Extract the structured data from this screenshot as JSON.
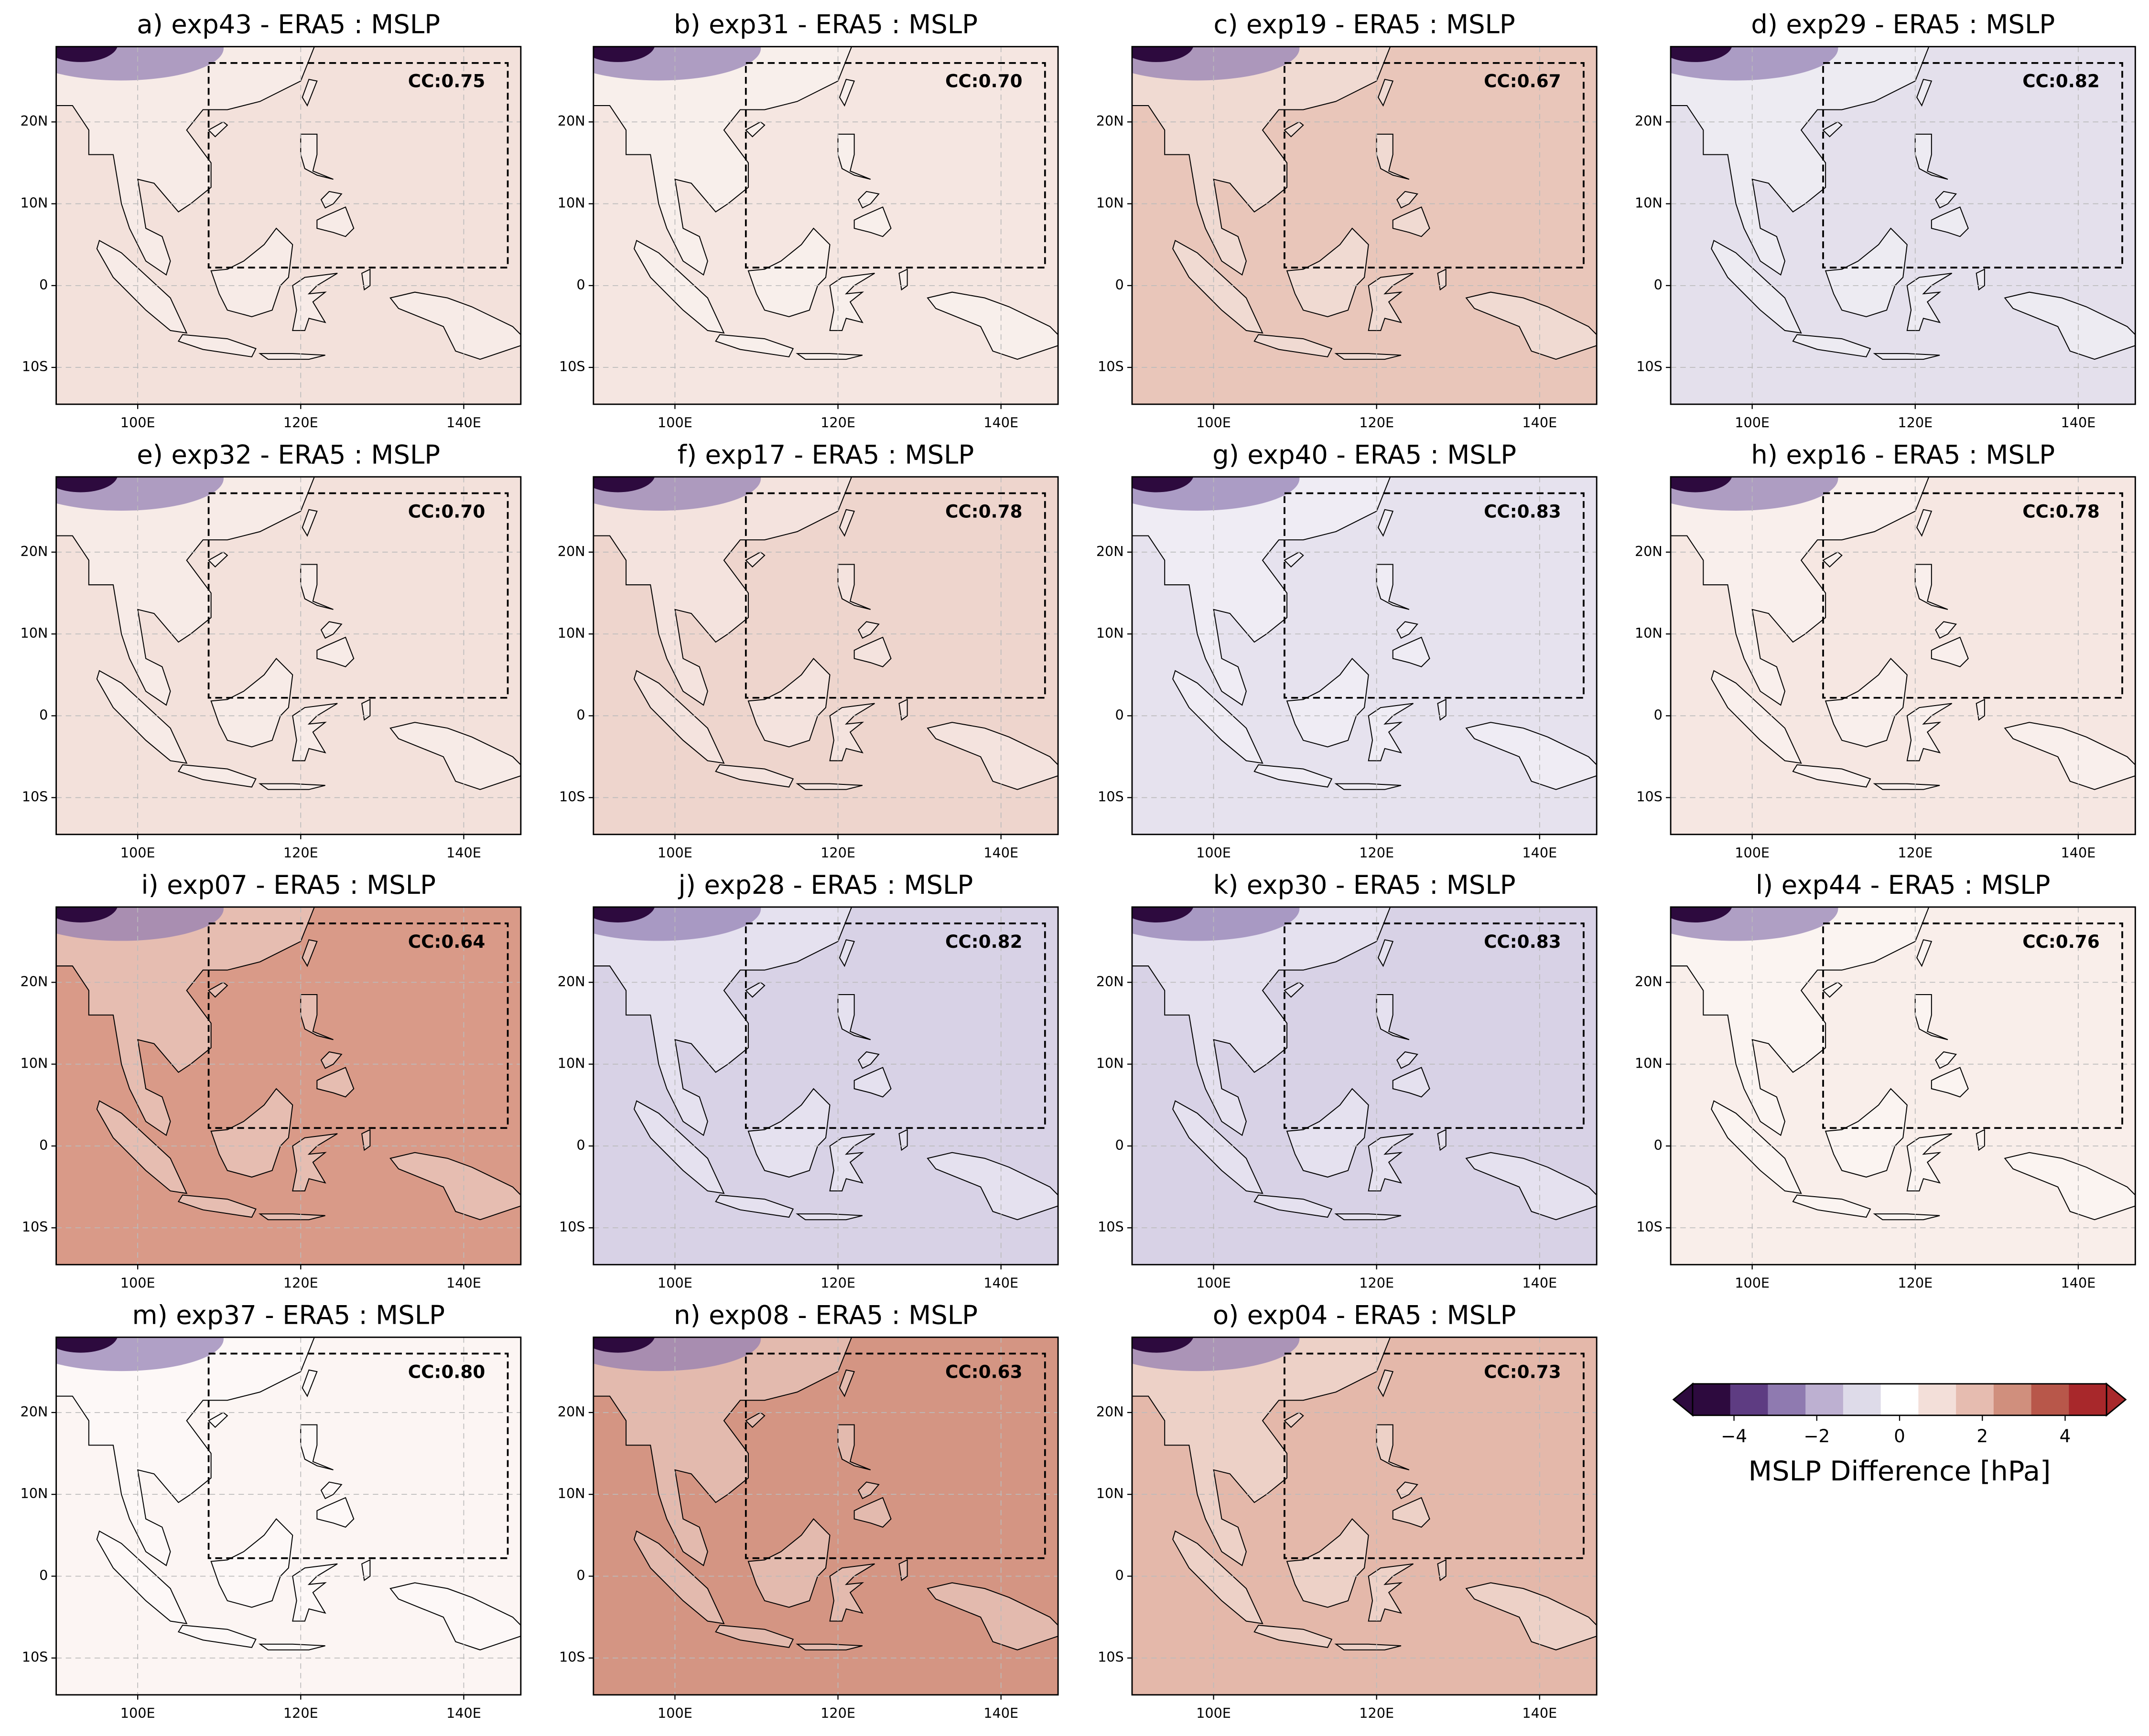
{
  "chart_data": [
    {
      "type": "map",
      "title": "a) exp43 - ERA5 : MSLP",
      "annotation": "CC:0.75",
      "color": "#f3e1db",
      "xlim": [
        90,
        147
      ],
      "ylim": [
        -14.5,
        29.2
      ],
      "xticks": [
        {
          "value": 100,
          "label": "100E"
        },
        {
          "value": 120,
          "label": "120E"
        },
        {
          "value": 140,
          "label": "140E"
        }
      ],
      "yticks": [
        {
          "value": -10,
          "label": "10S"
        },
        0,
        {
          "value": 10,
          "label": "10N"
        },
        {
          "value": 20,
          "label": "20N"
        }
      ]
    },
    {
      "type": "map",
      "title": "b) exp31 - ERA5 : MSLP",
      "annotation": "CC:0.70",
      "color": "#f5e6e1",
      "xlim": [
        90,
        147
      ],
      "ylim": [
        -14.5,
        29.2
      ],
      "xticks": [
        {
          "value": 100,
          "label": "100E"
        },
        {
          "value": 120,
          "label": "120E"
        },
        {
          "value": 140,
          "label": "140E"
        }
      ],
      "yticks": [
        {
          "value": -10,
          "label": "10S"
        },
        0,
        {
          "value": 10,
          "label": "10N"
        },
        {
          "value": 20,
          "label": "20N"
        }
      ]
    },
    {
      "type": "map",
      "title": "c) exp19 - ERA5 : MSLP",
      "annotation": "CC:0.67",
      "color": "#e9c6ba",
      "xlim": [
        90,
        147
      ],
      "ylim": [
        -14.5,
        29.2
      ],
      "xticks": [
        {
          "value": 100,
          "label": "100E"
        },
        {
          "value": 120,
          "label": "120E"
        },
        {
          "value": 140,
          "label": "140E"
        }
      ],
      "yticks": [
        {
          "value": -10,
          "label": "10S"
        },
        0,
        {
          "value": 10,
          "label": "10N"
        },
        {
          "value": 20,
          "label": "20N"
        }
      ]
    },
    {
      "type": "map",
      "title": "d) exp29 - ERA5 : MSLP",
      "annotation": "CC:0.82",
      "color": "#e4e0ec",
      "xlim": [
        90,
        147
      ],
      "ylim": [
        -14.5,
        29.2
      ],
      "xticks": [
        {
          "value": 100,
          "label": "100E"
        },
        {
          "value": 120,
          "label": "120E"
        },
        {
          "value": 140,
          "label": "140E"
        }
      ],
      "yticks": [
        {
          "value": -10,
          "label": "10S"
        },
        0,
        {
          "value": 10,
          "label": "10N"
        },
        {
          "value": 20,
          "label": "20N"
        }
      ]
    },
    {
      "type": "map",
      "title": "e) exp32 - ERA5 : MSLP",
      "annotation": "CC:0.70",
      "color": "#f3e1db",
      "xlim": [
        90,
        147
      ],
      "ylim": [
        -14.5,
        29.2
      ],
      "xticks": [
        {
          "value": 100,
          "label": "100E"
        },
        {
          "value": 120,
          "label": "120E"
        },
        {
          "value": 140,
          "label": "140E"
        }
      ],
      "yticks": [
        {
          "value": -10,
          "label": "10S"
        },
        0,
        {
          "value": 10,
          "label": "10N"
        },
        {
          "value": 20,
          "label": "20N"
        }
      ]
    },
    {
      "type": "map",
      "title": "f) exp17 - ERA5 : MSLP",
      "annotation": "CC:0.78",
      "color": "#eed5cd",
      "xlim": [
        90,
        147
      ],
      "ylim": [
        -14.5,
        29.2
      ],
      "xticks": [
        {
          "value": 100,
          "label": "100E"
        },
        {
          "value": 120,
          "label": "120E"
        },
        {
          "value": 140,
          "label": "140E"
        }
      ],
      "yticks": [
        {
          "value": -10,
          "label": "10S"
        },
        0,
        {
          "value": 10,
          "label": "10N"
        },
        {
          "value": 20,
          "label": "20N"
        }
      ]
    },
    {
      "type": "map",
      "title": "g) exp40 - ERA5 : MSLP",
      "annotation": "CC:0.83",
      "color": "#e6e2ee",
      "xlim": [
        90,
        147
      ],
      "ylim": [
        -14.5,
        29.2
      ],
      "xticks": [
        {
          "value": 100,
          "label": "100E"
        },
        {
          "value": 120,
          "label": "120E"
        },
        {
          "value": 140,
          "label": "140E"
        }
      ],
      "yticks": [
        {
          "value": -10,
          "label": "10S"
        },
        0,
        {
          "value": 10,
          "label": "10N"
        },
        {
          "value": 20,
          "label": "20N"
        }
      ]
    },
    {
      "type": "map",
      "title": "h) exp16 - ERA5 : MSLP",
      "annotation": "CC:0.78",
      "color": "#f6e7e2",
      "xlim": [
        90,
        147
      ],
      "ylim": [
        -14.5,
        29.2
      ],
      "xticks": [
        {
          "value": 100,
          "label": "100E"
        },
        {
          "value": 120,
          "label": "120E"
        },
        {
          "value": 140,
          "label": "140E"
        }
      ],
      "yticks": [
        {
          "value": -10,
          "label": "10S"
        },
        0,
        {
          "value": 10,
          "label": "10N"
        },
        {
          "value": 20,
          "label": "20N"
        }
      ]
    },
    {
      "type": "map",
      "title": "i) exp07 - ERA5 : MSLP",
      "annotation": "CC:0.64",
      "color": "#d99a88",
      "xlim": [
        90,
        147
      ],
      "ylim": [
        -14.5,
        29.2
      ],
      "xticks": [
        {
          "value": 100,
          "label": "100E"
        },
        {
          "value": 120,
          "label": "120E"
        },
        {
          "value": 140,
          "label": "140E"
        }
      ],
      "yticks": [
        {
          "value": -10,
          "label": "10S"
        },
        0,
        {
          "value": 10,
          "label": "10N"
        },
        {
          "value": 20,
          "label": "20N"
        }
      ]
    },
    {
      "type": "map",
      "title": "j) exp28 - ERA5 : MSLP",
      "annotation": "CC:0.82",
      "color": "#d8d2e6",
      "xlim": [
        90,
        147
      ],
      "ylim": [
        -14.5,
        29.2
      ],
      "xticks": [
        {
          "value": 100,
          "label": "100E"
        },
        {
          "value": 120,
          "label": "120E"
        },
        {
          "value": 140,
          "label": "140E"
        }
      ],
      "yticks": [
        {
          "value": -10,
          "label": "10S"
        },
        0,
        {
          "value": 10,
          "label": "10N"
        },
        {
          "value": 20,
          "label": "20N"
        }
      ]
    },
    {
      "type": "map",
      "title": "k) exp30 - ERA5 : MSLP",
      "annotation": "CC:0.83",
      "color": "#d8d2e6",
      "xlim": [
        90,
        147
      ],
      "ylim": [
        -14.5,
        29.2
      ],
      "xticks": [
        {
          "value": 100,
          "label": "100E"
        },
        {
          "value": 120,
          "label": "120E"
        },
        {
          "value": 140,
          "label": "140E"
        }
      ],
      "yticks": [
        {
          "value": -10,
          "label": "10S"
        },
        0,
        {
          "value": 10,
          "label": "10N"
        },
        {
          "value": 20,
          "label": "20N"
        }
      ]
    },
    {
      "type": "map",
      "title": "l) exp44 - ERA5 : MSLP",
      "annotation": "CC:0.76",
      "color": "#f9eeea",
      "xlim": [
        90,
        147
      ],
      "ylim": [
        -14.5,
        29.2
      ],
      "xticks": [
        {
          "value": 100,
          "label": "100E"
        },
        {
          "value": 120,
          "label": "120E"
        },
        {
          "value": 140,
          "label": "140E"
        }
      ],
      "yticks": [
        {
          "value": -10,
          "label": "10S"
        },
        0,
        {
          "value": 10,
          "label": "10N"
        },
        {
          "value": 20,
          "label": "20N"
        }
      ]
    },
    {
      "type": "map",
      "title": "m) exp37 - ERA5 : MSLP",
      "annotation": "CC:0.80",
      "color": "#fcf5f3",
      "xlim": [
        90,
        147
      ],
      "ylim": [
        -14.5,
        29.2
      ],
      "xticks": [
        {
          "value": 100,
          "label": "100E"
        },
        {
          "value": 120,
          "label": "120E"
        },
        {
          "value": 140,
          "label": "140E"
        }
      ],
      "yticks": [
        {
          "value": -10,
          "label": "10S"
        },
        0,
        {
          "value": 10,
          "label": "10N"
        },
        {
          "value": 20,
          "label": "20N"
        }
      ]
    },
    {
      "type": "map",
      "title": "n) exp08 - ERA5 : MSLP",
      "annotation": "CC:0.63",
      "color": "#d49583",
      "xlim": [
        90,
        147
      ],
      "ylim": [
        -14.5,
        29.2
      ],
      "xticks": [
        {
          "value": 100,
          "label": "100E"
        },
        {
          "value": 120,
          "label": "120E"
        },
        {
          "value": 140,
          "label": "140E"
        }
      ],
      "yticks": [
        {
          "value": -10,
          "label": "10S"
        },
        0,
        {
          "value": 10,
          "label": "10N"
        },
        {
          "value": 20,
          "label": "20N"
        }
      ]
    },
    {
      "type": "map",
      "title": "o) exp04 - ERA5 : MSLP",
      "annotation": "CC:0.73",
      "color": "#e4b8aa",
      "xlim": [
        90,
        147
      ],
      "ylim": [
        -14.5,
        29.2
      ],
      "xticks": [
        {
          "value": 100,
          "label": "100E"
        },
        {
          "value": 120,
          "label": "120E"
        },
        {
          "value": 140,
          "label": "140E"
        }
      ],
      "yticks": [
        {
          "value": -10,
          "label": "10S"
        },
        0,
        {
          "value": 10,
          "label": "10N"
        },
        {
          "value": 20,
          "label": "20N"
        }
      ]
    },
    {
      "type": "colorbar",
      "label": "MSLP Difference [hPa]",
      "xlim": [
        -5,
        5
      ],
      "xticks": [
        {
          "value": -4,
          "label": "−4"
        },
        {
          "value": -2,
          "label": "−2"
        },
        0,
        2,
        4
      ],
      "colors": [
        "#2d0a3e",
        "#5e3c82",
        "#8f7ab0",
        "#bdb0d1",
        "#dedbe9",
        "#ffffff",
        "#f3dfd9",
        "#e6bcb0",
        "#d08f7d",
        "#b8574a",
        "#a8282b"
      ]
    }
  ]
}
